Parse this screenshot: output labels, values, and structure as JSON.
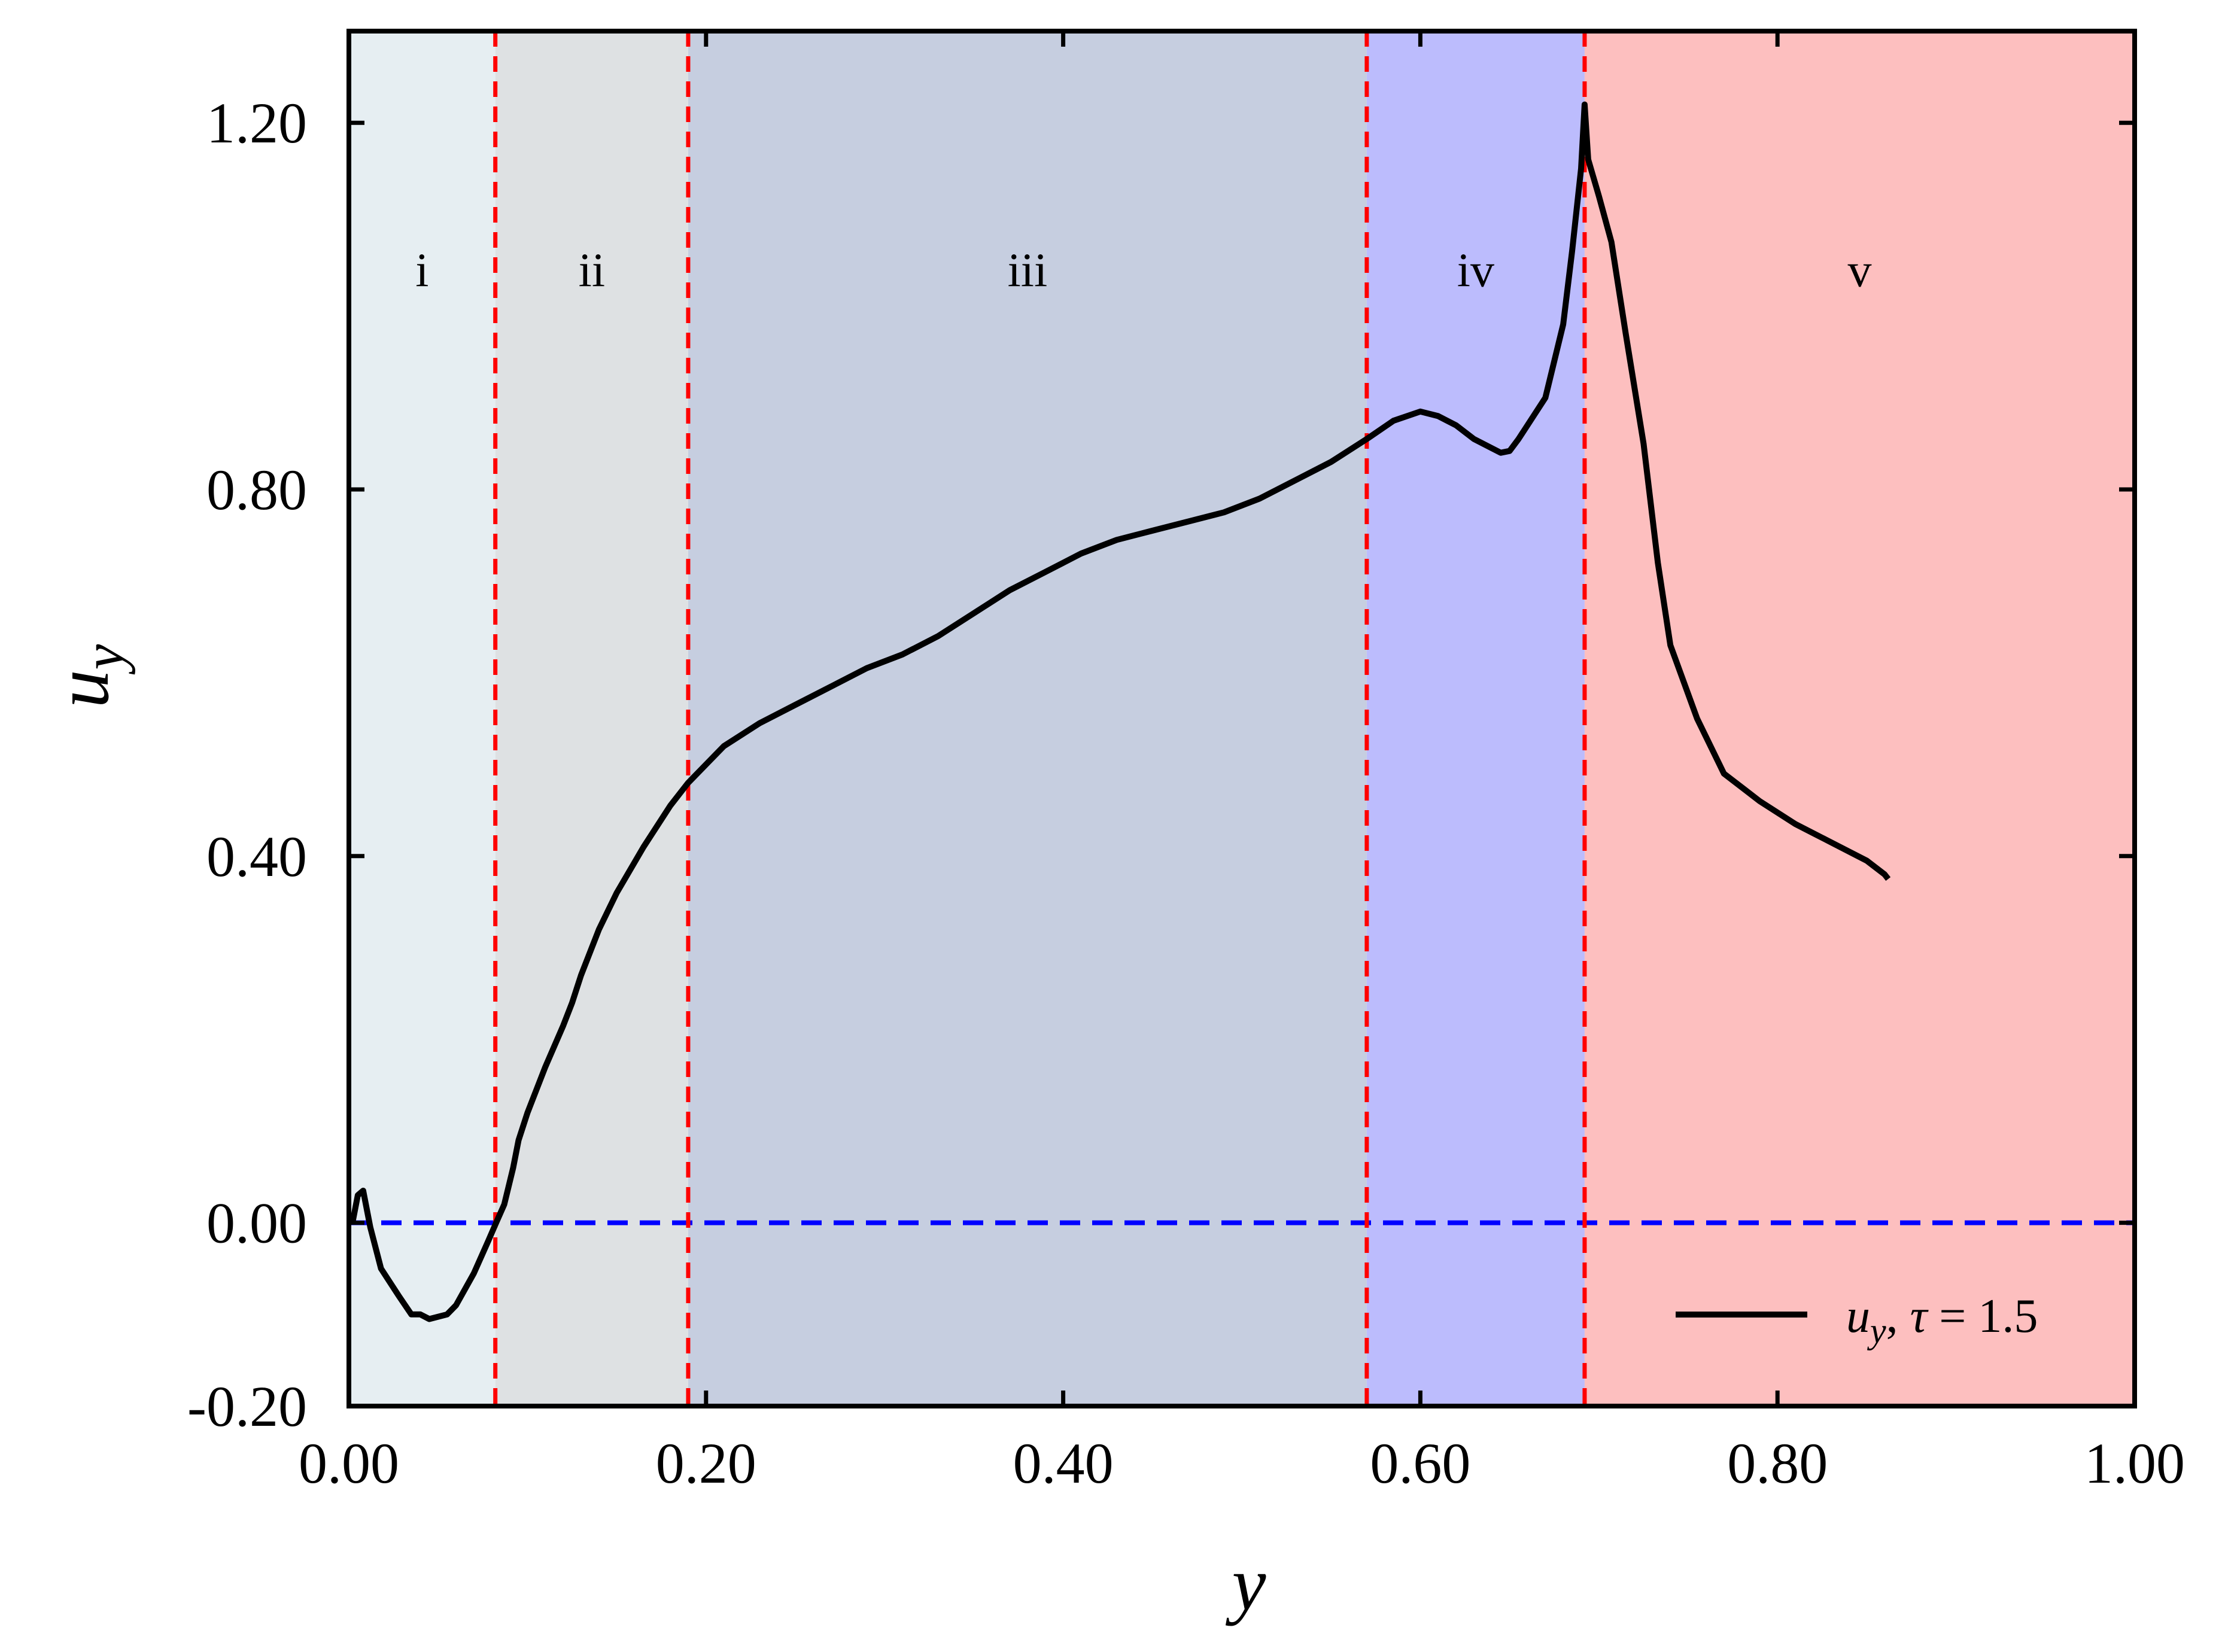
{
  "chart_data": {
    "type": "line",
    "xlabel": "y",
    "ylabel_main": "u",
    "ylabel_sub": "y",
    "xlim": [
      0.0,
      1.0
    ],
    "ylim": [
      -0.2,
      1.3
    ],
    "x_ticks": [
      0.0,
      0.2,
      0.4,
      0.6,
      0.8,
      1.0
    ],
    "x_tick_labels": [
      "0.00",
      "0.20",
      "0.40",
      "0.60",
      "0.80",
      "1.00"
    ],
    "y_ticks": [
      -0.2,
      0.0,
      0.4,
      0.8,
      1.2
    ],
    "y_tick_labels": [
      "-0.20",
      "0.00",
      "0.40",
      "0.80",
      "1.20"
    ],
    "grid": false,
    "legend_position": "bottom-right",
    "zero_line": {
      "y": 0.0,
      "color": "#0000ff",
      "style": "dashed"
    },
    "regions": [
      {
        "label": "i",
        "x0": 0.0,
        "x1": 0.082,
        "color": "#e6eef2"
      },
      {
        "label": "ii",
        "x0": 0.082,
        "x1": 0.19,
        "color": "#dee1e3"
      },
      {
        "label": "iii",
        "x0": 0.19,
        "x1": 0.57,
        "color": "#c6cee0"
      },
      {
        "label": "iv",
        "x0": 0.57,
        "x1": 0.692,
        "color": "#bcbcfd"
      },
      {
        "label": "v",
        "x0": 0.692,
        "x1": 1.0,
        "color": "#fdbfbf"
      }
    ],
    "region_label_y": 1.04,
    "boundaries": [
      0.082,
      0.19,
      0.57,
      0.692
    ],
    "boundary_color": "#ff0000",
    "series": [
      {
        "legend_parts": {
          "var": "u",
          "sub": "y",
          "sep": ", ",
          "greek": "τ",
          "eq": " = ",
          "val": "1.5"
        },
        "color": "#000000",
        "x": [
          0.002,
          0.005,
          0.008,
          0.012,
          0.018,
          0.028,
          0.035,
          0.04,
          0.045,
          0.055,
          0.06,
          0.07,
          0.078,
          0.082,
          0.087,
          0.092,
          0.095,
          0.1,
          0.11,
          0.12,
          0.125,
          0.13,
          0.14,
          0.15,
          0.165,
          0.18,
          0.19,
          0.21,
          0.23,
          0.25,
          0.27,
          0.29,
          0.31,
          0.33,
          0.35,
          0.37,
          0.39,
          0.41,
          0.43,
          0.45,
          0.47,
          0.49,
          0.51,
          0.53,
          0.55,
          0.57,
          0.585,
          0.6,
          0.61,
          0.62,
          0.63,
          0.64,
          0.645,
          0.65,
          0.655,
          0.66,
          0.67,
          0.68,
          0.685,
          0.69,
          0.692,
          0.694,
          0.7,
          0.707,
          0.715,
          0.725,
          0.733,
          0.74,
          0.755,
          0.77,
          0.79,
          0.81,
          0.83,
          0.85,
          0.86,
          0.862
        ],
        "y": [
          0.0,
          0.03,
          0.035,
          -0.005,
          -0.05,
          -0.08,
          -0.1,
          -0.1,
          -0.105,
          -0.1,
          -0.09,
          -0.055,
          -0.02,
          -0.002,
          0.02,
          0.06,
          0.09,
          0.12,
          0.17,
          0.215,
          0.24,
          0.27,
          0.32,
          0.36,
          0.41,
          0.455,
          0.48,
          0.52,
          0.545,
          0.565,
          0.585,
          0.605,
          0.62,
          0.64,
          0.665,
          0.69,
          0.71,
          0.73,
          0.745,
          0.755,
          0.765,
          0.775,
          0.79,
          0.81,
          0.83,
          0.855,
          0.875,
          0.885,
          0.88,
          0.87,
          0.855,
          0.845,
          0.84,
          0.842,
          0.855,
          0.87,
          0.9,
          0.98,
          1.06,
          1.15,
          1.22,
          1.16,
          1.12,
          1.07,
          0.97,
          0.85,
          0.72,
          0.63,
          0.55,
          0.49,
          0.46,
          0.435,
          0.415,
          0.395,
          0.38,
          0.375
        ]
      }
    ]
  }
}
